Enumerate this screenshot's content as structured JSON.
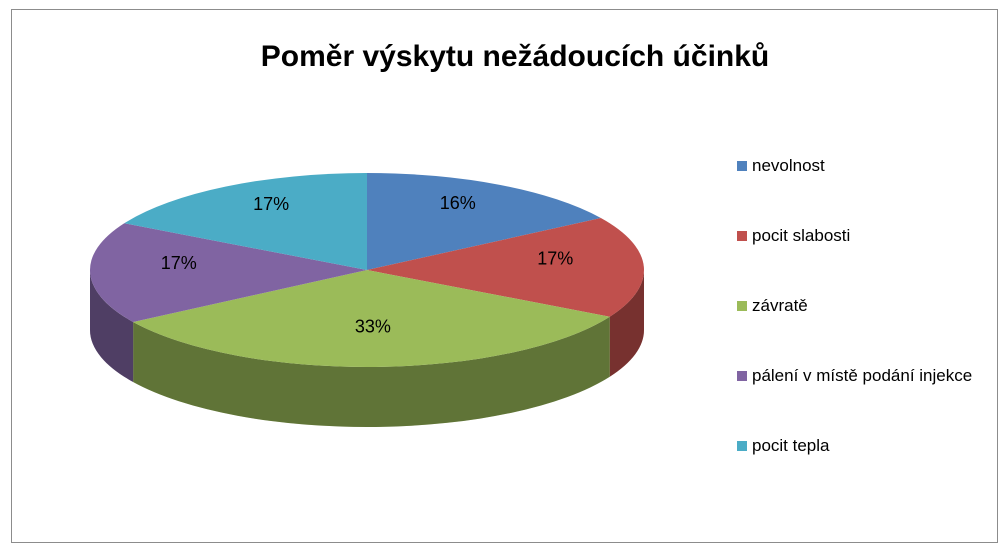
{
  "chart_data": {
    "type": "pie3d",
    "title": "Poměr výskytu nežádoucích účinků",
    "categories": [
      "nevolnost",
      "pocit slabosti",
      "závratě",
      "pálení v místě podání injekce",
      "pocit tepla"
    ],
    "values": [
      16,
      17,
      33,
      17,
      17
    ],
    "value_labels": [
      "16%",
      "17%",
      "33%",
      "17%",
      "17%"
    ],
    "colors": [
      "#4f81bd",
      "#c0504d",
      "#9bbb59",
      "#8064a2",
      "#4bacc6"
    ],
    "legend": "right"
  }
}
